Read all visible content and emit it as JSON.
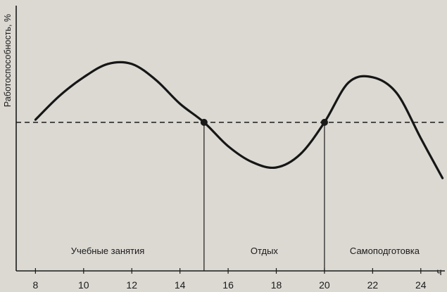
{
  "chart_data": {
    "type": "line",
    "title": "",
    "xlabel": "ч",
    "ylabel": "Работоспособность, %",
    "x_ticks": [
      8,
      10,
      12,
      14,
      16,
      18,
      20,
      22,
      24
    ],
    "xlim": [
      7.2,
      25
    ],
    "ylim": [
      0,
      100
    ],
    "grid": false,
    "legend": "none",
    "reference_level": 56,
    "phase_boundaries": [
      15,
      20
    ],
    "intersection_points": [
      {
        "x": 15,
        "y": 56
      },
      {
        "x": 20,
        "y": 56
      }
    ],
    "regions": [
      {
        "label": "Учебные занятия",
        "x": 11
      },
      {
        "label": "Отдых",
        "x": 17.5
      },
      {
        "label": "Самоподготовка",
        "x": 22.5
      }
    ],
    "series": [
      {
        "x": [
          8,
          9,
          10,
          11,
          12,
          13,
          14,
          15,
          16,
          17,
          18,
          19,
          20,
          21,
          22,
          23,
          24,
          24.9
        ],
        "values": [
          57,
          66,
          73,
          78,
          78,
          72,
          63,
          56,
          47,
          41,
          39,
          44,
          56,
          71,
          73,
          67,
          50,
          35
        ]
      }
    ]
  }
}
